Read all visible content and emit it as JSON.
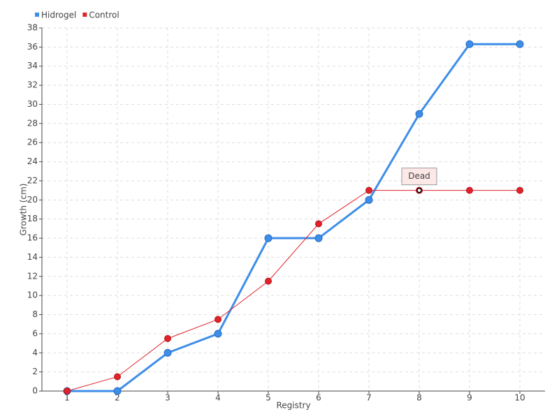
{
  "chart_data": {
    "type": "line",
    "x_label": "Registry",
    "y_label": "Growth (cm)",
    "categories": [
      "1",
      "2",
      "3",
      "4",
      "5",
      "6",
      "7",
      "8",
      "9",
      "10"
    ],
    "series": [
      {
        "name": "Hidrogel",
        "color": "#3d8ee8",
        "values": [
          0,
          0,
          4,
          6,
          16,
          16,
          20,
          29,
          36.3,
          36.3
        ]
      },
      {
        "name": "Control",
        "color": "#e0222a",
        "values": [
          0,
          1.5,
          5.5,
          7.5,
          11.5,
          17.5,
          21,
          21,
          21,
          21
        ]
      }
    ],
    "ylim": [
      0,
      38
    ],
    "yticks": [
      0,
      2,
      4,
      6,
      8,
      10,
      12,
      14,
      16,
      18,
      20,
      22,
      24,
      26,
      28,
      30,
      32,
      34,
      36,
      38
    ],
    "grid": true,
    "legend": "top-left",
    "annotations": [
      {
        "text": "Dead",
        "x": "8",
        "y": 21
      }
    ]
  }
}
